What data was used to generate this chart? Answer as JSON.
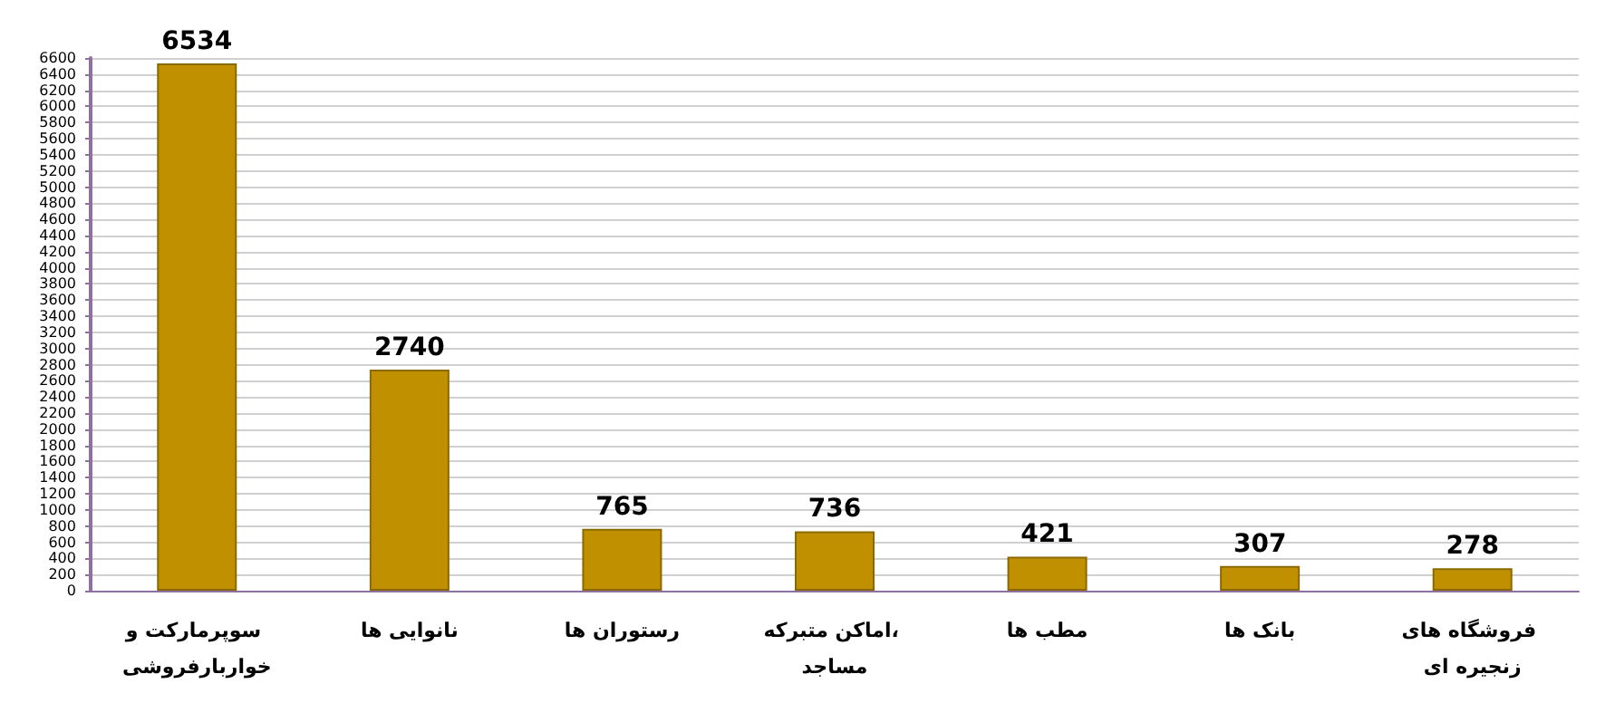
{
  "chart_data": {
    "type": "bar",
    "categories": [
      "سوپرمارکت و خواربارفروشی",
      "نانوایی ها",
      "رستوران ها",
      "اماکن متبرکه، مساجد",
      "مطب ها",
      "بانک ها",
      "فروشگاه های زنجیره ای"
    ],
    "values": [
      6534,
      2740,
      765,
      736,
      421,
      307,
      278
    ],
    "color": "#c09000",
    "ylim": [
      0,
      6600
    ],
    "yticks": [
      0,
      200,
      400,
      600,
      800,
      1000,
      1200,
      1400,
      1600,
      1800,
      2000,
      2200,
      2400,
      2600,
      2800,
      3000,
      3200,
      3400,
      3600,
      3800,
      4000,
      4200,
      4400,
      4600,
      4800,
      5000,
      5200,
      5400,
      5600,
      5800,
      6000,
      6200,
      6400,
      6600
    ],
    "grid": "y",
    "data_labels": true
  }
}
